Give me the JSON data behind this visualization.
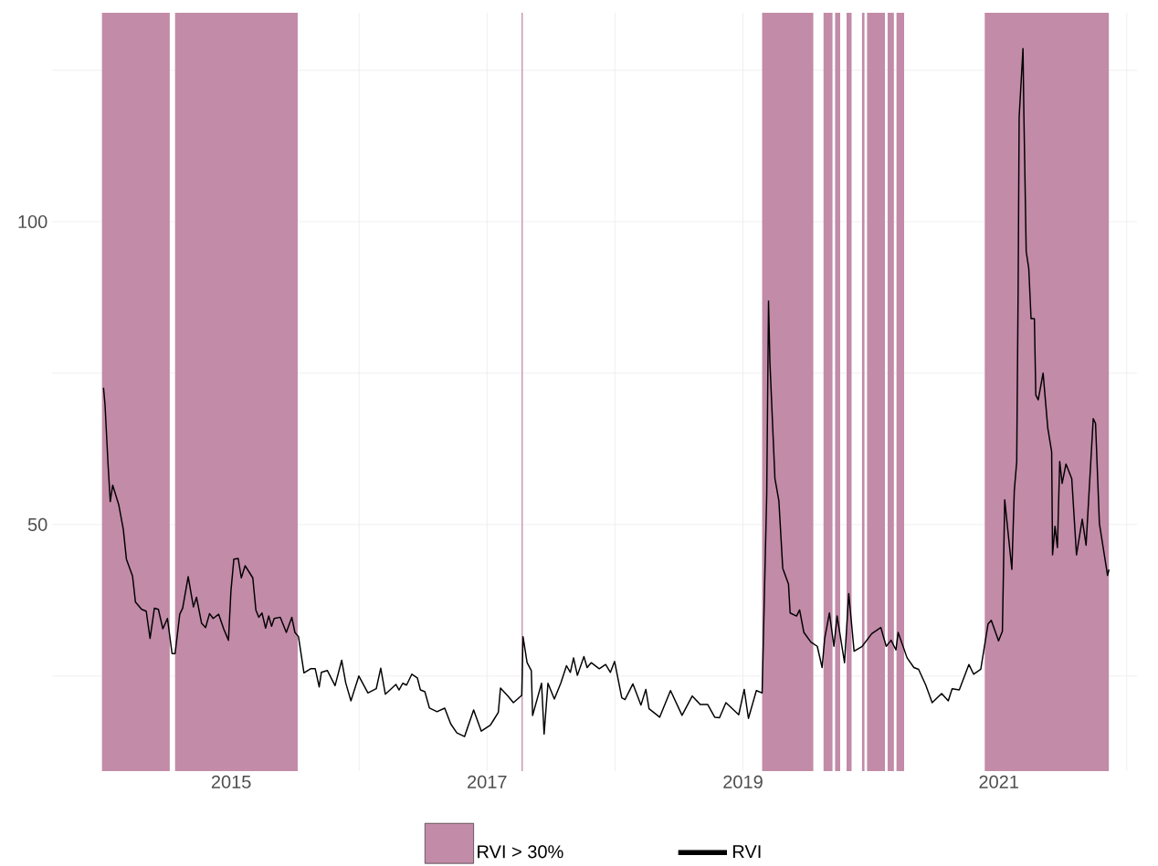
{
  "chart_data": {
    "type": "line",
    "x": [
      2014.002,
      2014.014,
      2014.038,
      2014.055,
      2014.074,
      2014.121,
      2014.157,
      2014.181,
      2014.229,
      2014.252,
      2014.3,
      2014.336,
      2014.366,
      2014.4,
      2014.431,
      2014.466,
      2014.502,
      2014.538,
      2014.562,
      2014.598,
      2014.621,
      2014.664,
      2014.705,
      2014.729,
      2014.769,
      2014.8,
      2014.831,
      2014.859,
      2014.902,
      2014.943,
      2014.979,
      2014.998,
      2015.021,
      2015.055,
      2015.079,
      2015.109,
      2015.169,
      2015.193,
      2015.216,
      2015.241,
      2015.269,
      2015.293,
      2015.316,
      2015.336,
      2015.384,
      2015.431,
      2015.474,
      2015.498,
      2015.526,
      2015.569,
      2015.621,
      2015.657,
      2015.688,
      2015.705,
      2015.752,
      2015.812,
      2015.864,
      2015.895,
      2015.936,
      2015.998,
      2016.069,
      2016.134,
      2016.169,
      2016.205,
      2016.288,
      2016.312,
      2016.341,
      2016.371,
      2016.412,
      2016.455,
      2016.479,
      2016.514,
      2016.55,
      2016.609,
      2016.669,
      2016.716,
      2016.764,
      2016.824,
      2016.895,
      2016.955,
      2017.026,
      2017.05,
      2017.088,
      2017.105,
      2017.163,
      2017.206,
      2017.271,
      2017.281,
      2017.313,
      2017.346,
      2017.356,
      2017.426,
      2017.446,
      2017.476,
      2017.526,
      2017.576,
      2017.621,
      2017.651,
      2017.676,
      2017.706,
      2017.757,
      2017.782,
      2017.814,
      2017.877,
      2017.927,
      2017.964,
      2017.997,
      2018.053,
      2018.078,
      2018.14,
      2018.203,
      2018.241,
      2018.266,
      2018.349,
      2018.434,
      2018.524,
      2018.604,
      2018.666,
      2018.724,
      2018.779,
      2018.817,
      2018.867,
      2018.967,
      2019.01,
      2019.043,
      2019.105,
      2019.15,
      2019.168,
      2019.186,
      2019.2,
      2019.211,
      2019.25,
      2019.281,
      2019.311,
      2019.356,
      2019.369,
      2019.419,
      2019.443,
      2019.476,
      2019.531,
      2019.581,
      2019.619,
      2019.639,
      2019.676,
      2019.711,
      2019.736,
      2019.794,
      2019.827,
      2019.869,
      2019.932,
      2020.007,
      2020.078,
      2020.12,
      2020.158,
      2020.196,
      2020.213,
      2020.283,
      2020.336,
      2020.373,
      2020.429,
      2020.479,
      2020.553,
      2020.605,
      2020.635,
      2020.691,
      2020.766,
      2020.803,
      2020.859,
      2020.916,
      2020.941,
      2020.998,
      2021.028,
      2021.046,
      2021.102,
      2021.121,
      2021.14,
      2021.151,
      2021.159,
      2021.189,
      2021.196,
      2021.214,
      2021.234,
      2021.252,
      2021.278,
      2021.289,
      2021.308,
      2021.346,
      2021.383,
      2021.413,
      2021.42,
      2021.439,
      2021.458,
      2021.476,
      2021.495,
      2021.525,
      2021.57,
      2021.607,
      2021.652,
      2021.682,
      2021.738,
      2021.756,
      2021.786,
      2021.85,
      2021.861
    ],
    "series": [
      {
        "name": "RVI",
        "color": "#000000",
        "values": [
          72.6,
          69.8,
          59.8,
          53.8,
          56.5,
          53.3,
          49.2,
          44.3,
          41.5,
          37.2,
          36,
          35.7,
          31.2,
          36.2,
          36,
          32.8,
          34.5,
          28.7,
          28.7,
          35.2,
          36.2,
          41.4,
          36.4,
          38,
          33.7,
          33,
          35.3,
          34.5,
          35.2,
          32.7,
          30.9,
          39,
          44.3,
          44.4,
          41.2,
          43.2,
          41.2,
          35.9,
          34.7,
          35.4,
          32.9,
          34.9,
          33.2,
          34.5,
          34.7,
          32.2,
          34.7,
          32.2,
          31.5,
          25.5,
          26.2,
          26.2,
          23.2,
          25.6,
          25.9,
          23.4,
          27.6,
          23.9,
          20.9,
          25,
          22.2,
          22.9,
          26.3,
          22,
          23.6,
          22.7,
          23.8,
          23.5,
          25.3,
          24.7,
          22.7,
          22.4,
          19.7,
          19.1,
          19.7,
          17.1,
          15.6,
          15,
          19.4,
          15.9,
          16.9,
          17.7,
          19,
          23,
          21.7,
          20.6,
          21.8,
          31.5,
          27.2,
          25.9,
          18.5,
          23.8,
          15.4,
          23.8,
          21.2,
          23.8,
          26.7,
          25.6,
          28,
          25.1,
          28.2,
          26.4,
          27.2,
          26.2,
          26.9,
          25.6,
          27.4,
          21.4,
          21.1,
          23.7,
          20.2,
          22.8,
          19.6,
          18.2,
          22.6,
          18.5,
          21.7,
          20.3,
          20.3,
          18.2,
          18.1,
          20.6,
          18.6,
          22.8,
          18,
          22.6,
          22.2,
          38.6,
          55,
          86.9,
          76.7,
          57.6,
          53.9,
          42.8,
          40.2,
          35.4,
          34.9,
          35.9,
          32.2,
          30.6,
          29.9,
          26.4,
          31.2,
          35.4,
          29.9,
          34.9,
          27.2,
          38.6,
          29.1,
          29.9,
          32,
          33,
          29.9,
          30.9,
          29.3,
          32.2,
          28,
          26.4,
          26.1,
          23.5,
          20.6,
          22.1,
          20.9,
          22.9,
          22.7,
          26.9,
          25.3,
          26.1,
          33.6,
          34.2,
          30.8,
          32.4,
          54.1,
          42.6,
          55.6,
          60.4,
          88.8,
          117.3,
          128.6,
          117.5,
          95.1,
          92.3,
          84,
          84,
          71.4,
          70.6,
          75,
          65.9,
          62,
          45,
          49.7,
          46.2,
          60.4,
          56.8,
          60,
          57.6,
          45,
          50.9,
          46.6,
          67.5,
          66.7,
          50.2,
          41.6,
          42.6
        ]
      }
    ],
    "bands": [
      {
        "axis": "x",
        "from": 2013.99,
        "to": 2014.52,
        "label": "RVI > 30%",
        "color": "#c28ba8"
      },
      {
        "axis": "x",
        "from": 2014.56,
        "to": 2015.52,
        "color": "#c28ba8"
      },
      {
        "axis": "x",
        "from": 2017.27,
        "to": 2017.28,
        "color": "#c28ba8"
      },
      {
        "axis": "x",
        "from": 2019.15,
        "to": 2019.55,
        "color": "#c28ba8"
      },
      {
        "axis": "x",
        "from": 2019.63,
        "to": 2019.7,
        "color": "#c28ba8"
      },
      {
        "axis": "x",
        "from": 2019.72,
        "to": 2019.76,
        "color": "#c28ba8"
      },
      {
        "axis": "x",
        "from": 2019.81,
        "to": 2019.85,
        "color": "#c28ba8"
      },
      {
        "axis": "x",
        "from": 2019.93,
        "to": 2019.95,
        "color": "#c28ba8"
      },
      {
        "axis": "x",
        "from": 2019.97,
        "to": 2020.11,
        "color": "#c28ba8"
      },
      {
        "axis": "x",
        "from": 2020.13,
        "to": 2020.18,
        "color": "#c28ba8"
      },
      {
        "axis": "x",
        "from": 2020.2,
        "to": 2020.26,
        "color": "#c28ba8"
      },
      {
        "axis": "x",
        "from": 2020.89,
        "to": 2021.86,
        "color": "#c28ba8"
      }
    ],
    "xlim": [
      2013.6,
      2022.08
    ],
    "ylim": [
      9.3,
      134.5
    ],
    "xticks": [
      2015,
      {
        "value": 2016,
        "label": null
      },
      2017,
      {
        "value": 2018,
        "label": null
      },
      2019,
      {
        "value": 2020,
        "label": null
      },
      2021,
      {
        "value": 2022,
        "label": null
      }
    ],
    "yticks": [
      {
        "value": 25,
        "label": null
      },
      50,
      {
        "value": 75,
        "label": null
      },
      100,
      {
        "value": 125,
        "label": null
      }
    ],
    "grid": true,
    "legend": "bottom",
    "marker": "none",
    "line_style": "solid"
  }
}
